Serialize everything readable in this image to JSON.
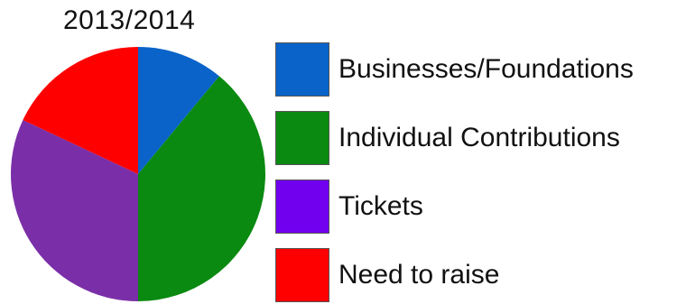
{
  "chart_data": {
    "type": "pie",
    "title": "2013/2014",
    "categories": [
      "Businesses/Foundations",
      "Individual Contributions",
      "Tickets",
      "Need to raise"
    ],
    "values": [
      11,
      39,
      32,
      18
    ],
    "colors": [
      "#0a63c9",
      "#0a8a10",
      "#7a2fa8",
      "#ff0000"
    ],
    "legend_colors": [
      "#0a63c9",
      "#0a8a10",
      "#7000ee",
      "#ff0000"
    ],
    "start_angle_deg": 0,
    "direction": "clockwise",
    "legend_position": "right"
  }
}
